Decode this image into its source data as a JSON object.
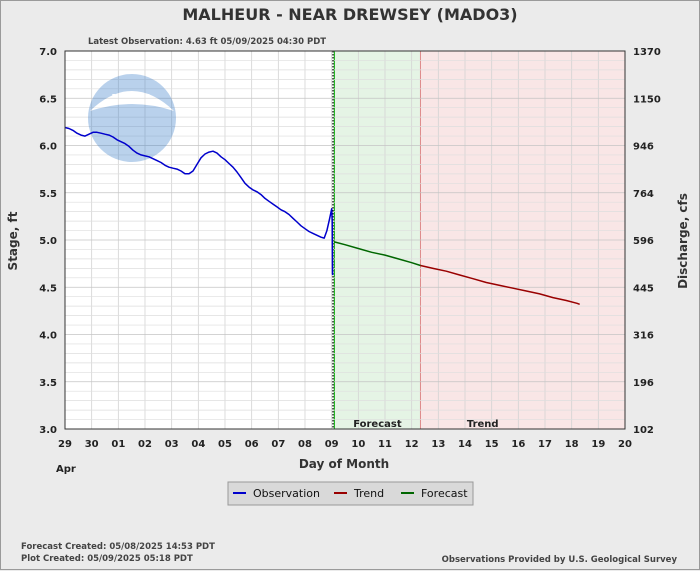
{
  "header": {
    "title": "MALHEUR - NEAR DREWSEY  (MADO3)",
    "latest_observation": "Latest Observation: 4.63 ft 05/09/2025 04:30 PDT"
  },
  "logo": {
    "text": "NOAA"
  },
  "footer": {
    "forecast_created": "Forecast Created: 05/08/2025 14:53 PDT",
    "plot_created": "Plot Created: 05/09/2025 05:18 PDT",
    "credit": "Observations Provided by U.S. Geological Survey"
  },
  "legend": {
    "items": [
      {
        "label": "Observation",
        "color": "#0000cc"
      },
      {
        "label": "Trend",
        "color": "#990000"
      },
      {
        "label": "Forecast",
        "color": "#006600"
      }
    ]
  },
  "chart_data": {
    "type": "line",
    "xlabel": "Day of Month",
    "ylabel": "Stage, ft",
    "y2label": "Discharge, cfs",
    "month_label": "Apr",
    "x_ticks": [
      "29",
      "30",
      "01",
      "02",
      "03",
      "04",
      "05",
      "06",
      "07",
      "08",
      "09",
      "10",
      "11",
      "12",
      "13",
      "14",
      "15",
      "16",
      "17",
      "18",
      "19",
      "20"
    ],
    "y_ticks": [
      "3.0",
      "3.5",
      "4.0",
      "4.5",
      "5.0",
      "5.5",
      "6.0",
      "6.5",
      "7.0"
    ],
    "y2_ticks": [
      "102",
      "196",
      "316",
      "445",
      "596",
      "764",
      "946",
      "1150",
      "1370"
    ],
    "ylim": [
      3.0,
      7.0
    ],
    "xlim_days": [
      0,
      21
    ],
    "zones": [
      {
        "label": "Forecast",
        "from_day": 10.1,
        "to_day": 13.33,
        "color": "#e5f4e5",
        "line": "#00aa00"
      },
      {
        "label": "Trend",
        "from_day": 13.33,
        "to_day": 21,
        "color": "#f9e6e6",
        "line": "#dd8888"
      }
    ],
    "now_marker_day": 10.05,
    "grid": true,
    "series": [
      {
        "name": "Observation",
        "color": "#0000cc",
        "points": [
          [
            0.0,
            6.19
          ],
          [
            0.15,
            6.18
          ],
          [
            0.3,
            6.16
          ],
          [
            0.45,
            6.13
          ],
          [
            0.6,
            6.11
          ],
          [
            0.75,
            6.1
          ],
          [
            0.9,
            6.12
          ],
          [
            1.05,
            6.14
          ],
          [
            1.2,
            6.14
          ],
          [
            1.35,
            6.13
          ],
          [
            1.5,
            6.12
          ],
          [
            1.65,
            6.11
          ],
          [
            1.8,
            6.09
          ],
          [
            1.95,
            6.06
          ],
          [
            2.1,
            6.04
          ],
          [
            2.25,
            6.02
          ],
          [
            2.4,
            5.99
          ],
          [
            2.55,
            5.95
          ],
          [
            2.7,
            5.92
          ],
          [
            2.85,
            5.9
          ],
          [
            3.0,
            5.89
          ],
          [
            3.15,
            5.88
          ],
          [
            3.3,
            5.86
          ],
          [
            3.45,
            5.84
          ],
          [
            3.6,
            5.82
          ],
          [
            3.75,
            5.79
          ],
          [
            3.9,
            5.77
          ],
          [
            4.05,
            5.76
          ],
          [
            4.2,
            5.75
          ],
          [
            4.35,
            5.73
          ],
          [
            4.5,
            5.7
          ],
          [
            4.65,
            5.7
          ],
          [
            4.8,
            5.73
          ],
          [
            4.95,
            5.8
          ],
          [
            5.1,
            5.87
          ],
          [
            5.25,
            5.91
          ],
          [
            5.4,
            5.93
          ],
          [
            5.55,
            5.94
          ],
          [
            5.7,
            5.92
          ],
          [
            5.85,
            5.88
          ],
          [
            6.0,
            5.85
          ],
          [
            6.15,
            5.81
          ],
          [
            6.3,
            5.77
          ],
          [
            6.45,
            5.72
          ],
          [
            6.6,
            5.66
          ],
          [
            6.75,
            5.6
          ],
          [
            6.9,
            5.56
          ],
          [
            7.05,
            5.53
          ],
          [
            7.2,
            5.51
          ],
          [
            7.35,
            5.48
          ],
          [
            7.5,
            5.44
          ],
          [
            7.65,
            5.41
          ],
          [
            7.8,
            5.38
          ],
          [
            7.95,
            5.35
          ],
          [
            8.1,
            5.32
          ],
          [
            8.25,
            5.3
          ],
          [
            8.4,
            5.27
          ],
          [
            8.55,
            5.23
          ],
          [
            8.7,
            5.19
          ],
          [
            8.85,
            5.15
          ],
          [
            9.0,
            5.12
          ],
          [
            9.15,
            5.09
          ],
          [
            9.3,
            5.07
          ],
          [
            9.45,
            5.05
          ],
          [
            9.6,
            5.03
          ],
          [
            9.72,
            5.02
          ],
          [
            9.82,
            5.1
          ],
          [
            9.92,
            5.22
          ],
          [
            10.0,
            5.33
          ],
          [
            10.02,
            5.2
          ],
          [
            10.03,
            4.64
          ],
          [
            10.05,
            4.63
          ]
        ]
      },
      {
        "name": "Forecast",
        "color": "#006600",
        "points": [
          [
            10.1,
            4.98
          ],
          [
            10.5,
            4.95
          ],
          [
            11.0,
            4.91
          ],
          [
            11.5,
            4.87
          ],
          [
            12.0,
            4.84
          ],
          [
            12.5,
            4.8
          ],
          [
            13.0,
            4.76
          ],
          [
            13.33,
            4.73
          ]
        ]
      },
      {
        "name": "Trend",
        "color": "#990000",
        "points": [
          [
            13.33,
            4.73
          ],
          [
            13.8,
            4.7
          ],
          [
            14.3,
            4.67
          ],
          [
            14.8,
            4.63
          ],
          [
            15.3,
            4.59
          ],
          [
            15.8,
            4.55
          ],
          [
            16.3,
            4.52
          ],
          [
            16.8,
            4.49
          ],
          [
            17.3,
            4.46
          ],
          [
            17.8,
            4.43
          ],
          [
            18.3,
            4.39
          ],
          [
            18.8,
            4.36
          ],
          [
            19.2,
            4.33
          ],
          [
            19.3,
            4.32
          ]
        ]
      }
    ]
  }
}
